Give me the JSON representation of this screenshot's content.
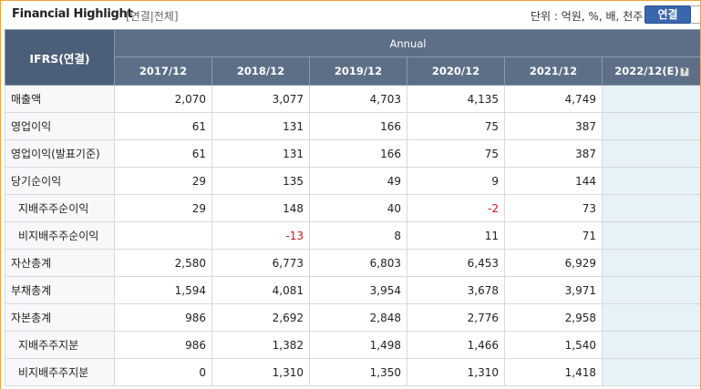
{
  "header": {
    "title": "Financial Highlight",
    "subtitle": "[연결|전체]",
    "unit_text": "단위 : 억원, %, 배, 천주",
    "toggle_label": "연결"
  },
  "table": {
    "corner_label": "IFRS(연결)",
    "group_label": "Annual",
    "years": [
      "2017/12",
      "2018/12",
      "2019/12",
      "2020/12",
      "2021/12",
      "2022/12(E)"
    ],
    "help_icon_glyph": "?",
    "rows": [
      {
        "label": "매출액",
        "sub": false,
        "values": [
          "2,070",
          "3,077",
          "4,703",
          "4,135",
          "4,749",
          ""
        ]
      },
      {
        "label": "영업이익",
        "sub": false,
        "values": [
          "61",
          "131",
          "166",
          "75",
          "387",
          ""
        ]
      },
      {
        "label": "영업이익(발표기준)",
        "sub": false,
        "values": [
          "61",
          "131",
          "166",
          "75",
          "387",
          ""
        ]
      },
      {
        "label": "당기순이익",
        "sub": false,
        "values": [
          "29",
          "135",
          "49",
          "9",
          "144",
          ""
        ]
      },
      {
        "label": "지배주주순이익",
        "sub": true,
        "values": [
          "29",
          "148",
          "40",
          "-2",
          "73",
          ""
        ]
      },
      {
        "label": "비지배주주순이익",
        "sub": true,
        "values": [
          "",
          "-13",
          "8",
          "11",
          "71",
          ""
        ]
      },
      {
        "label": "자산총계",
        "sub": false,
        "values": [
          "2,580",
          "6,773",
          "6,803",
          "6,453",
          "6,929",
          ""
        ]
      },
      {
        "label": "부채총계",
        "sub": false,
        "values": [
          "1,594",
          "4,081",
          "3,954",
          "3,678",
          "3,971",
          ""
        ]
      },
      {
        "label": "자본총계",
        "sub": false,
        "values": [
          "986",
          "2,692",
          "2,848",
          "2,776",
          "2,958",
          ""
        ]
      },
      {
        "label": "지배주주지분",
        "sub": true,
        "values": [
          "986",
          "1,382",
          "1,498",
          "1,466",
          "1,540",
          ""
        ]
      },
      {
        "label": "비지배주주지분",
        "sub": true,
        "values": [
          "0",
          "1,310",
          "1,350",
          "1,310",
          "1,418",
          ""
        ]
      }
    ]
  },
  "colors": {
    "header_bg": "#5c6f87",
    "button_bg": "#3a66ad",
    "estimate_col_bg": "#e6f2f8",
    "negative": "#cc1a1a",
    "frame_border": "#f0a23a"
  }
}
